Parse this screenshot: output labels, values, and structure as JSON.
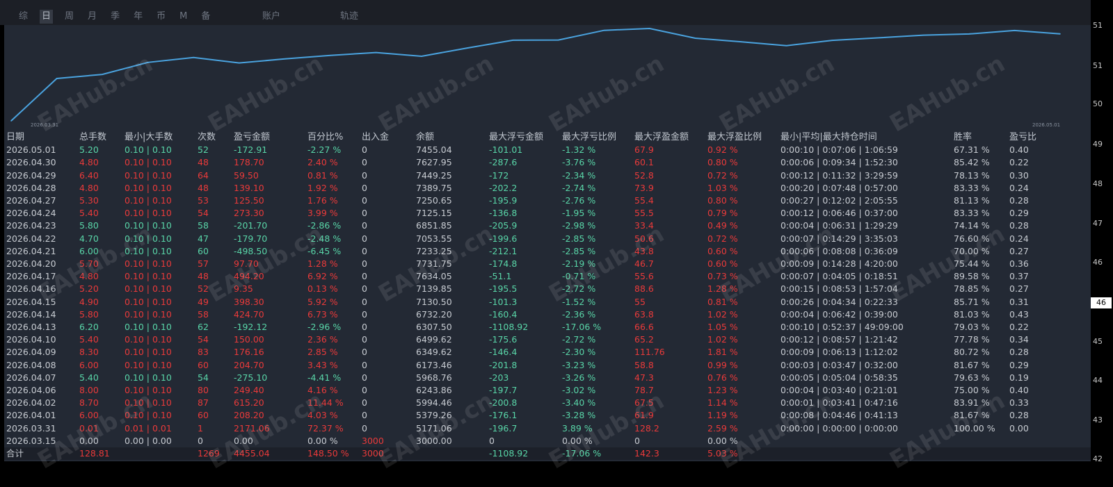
{
  "tabs": [
    "综",
    "日",
    "周",
    "月",
    "季",
    "年",
    "币",
    "M",
    "备"
  ],
  "tab_active": "日",
  "tab_account": "账户",
  "tab_track": "轨迹",
  "chart_data": {
    "type": "line",
    "x_start_label": "2026.03.31",
    "x_end_label": "2026.05.01",
    "values": [
      3000,
      5171.06,
      5379.26,
      5994.46,
      6243.86,
      5968.76,
      6173.46,
      6349.62,
      6499.62,
      6307.5,
      6732.2,
      7130.5,
      7139.85,
      7634.05,
      7731.75,
      7233.25,
      7053.55,
      6851.85,
      7125.15,
      7250.65,
      7389.75,
      7449.25,
      7627.95,
      7455.04
    ],
    "color": "#4aa3df"
  },
  "table": {
    "headers": [
      "日期",
      "总手数",
      "最小|大手数",
      "次数",
      "盈亏金额",
      "百分比%",
      "出入金",
      "余额",
      "最大浮亏金额",
      "最大浮亏比例",
      "最大浮盈金额",
      "最大浮盈比例",
      "最小|平均|最大持仓时间",
      "胜率",
      "盈亏比"
    ],
    "rows": [
      [
        "2026.05.01",
        "5.20",
        "0.10 | 0.10",
        "52",
        "-172.91",
        "-2.27 %",
        "0",
        "7455.04",
        "-101.01",
        "-1.32 %",
        "67.9",
        "0.92 %",
        "0:00:10 | 0:07:06 | 1:06:59",
        "67.31 %",
        "0.40"
      ],
      [
        "2026.04.30",
        "4.80",
        "0.10 | 0.10",
        "48",
        "178.70",
        "2.40 %",
        "0",
        "7627.95",
        "-287.6",
        "-3.76 %",
        "60.1",
        "0.80 %",
        "0:00:06 | 0:09:34 | 1:52:30",
        "85.42 %",
        "0.22"
      ],
      [
        "2026.04.29",
        "6.40",
        "0.10 | 0.10",
        "64",
        "59.50",
        "0.81 %",
        "0",
        "7449.25",
        "-172",
        "-2.34 %",
        "52.8",
        "0.72 %",
        "0:00:12 | 0:11:32 | 3:29:59",
        "78.13 %",
        "0.30"
      ],
      [
        "2026.04.28",
        "4.80",
        "0.10 | 0.10",
        "48",
        "139.10",
        "1.92 %",
        "0",
        "7389.75",
        "-202.2",
        "-2.74 %",
        "73.9",
        "1.03 %",
        "0:00:20 | 0:07:48 | 0:57:00",
        "83.33 %",
        "0.24"
      ],
      [
        "2026.04.27",
        "5.30",
        "0.10 | 0.10",
        "53",
        "125.50",
        "1.76 %",
        "0",
        "7250.65",
        "-195.9",
        "-2.76 %",
        "55.4",
        "0.80 %",
        "0:00:27 | 0:12:02 | 2:05:55",
        "81.13 %",
        "0.28"
      ],
      [
        "2026.04.24",
        "5.40",
        "0.10 | 0.10",
        "54",
        "273.30",
        "3.99 %",
        "0",
        "7125.15",
        "-136.8",
        "-1.95 %",
        "55.5",
        "0.79 %",
        "0:00:12 | 0:06:46 | 0:37:00",
        "83.33 %",
        "0.29"
      ],
      [
        "2026.04.23",
        "5.80",
        "0.10 | 0.10",
        "58",
        "-201.70",
        "-2.86 %",
        "0",
        "6851.85",
        "-205.9",
        "-2.98 %",
        "33.4",
        "0.49 %",
        "0:00:04 | 0:06:31 | 1:29:29",
        "74.14 %",
        "0.28"
      ],
      [
        "2026.04.22",
        "4.70",
        "0.10 | 0.10",
        "47",
        "-179.70",
        "-2.48 %",
        "0",
        "7053.55",
        "-199.6",
        "-2.85 %",
        "50.6",
        "0.72 %",
        "0:00:07 | 0:14:29 | 3:35:03",
        "76.60 %",
        "0.24"
      ],
      [
        "2026.04.21",
        "6.00",
        "0.10 | 0.10",
        "60",
        "-498.50",
        "-6.45 %",
        "0",
        "7233.25",
        "-212.1",
        "-2.85 %",
        "43.8",
        "0.60 %",
        "0:00:06 | 0:08:08 | 0:36:09",
        "70.00 %",
        "0.27"
      ],
      [
        "2026.04.20",
        "5.70",
        "0.10 | 0.10",
        "57",
        "97.70",
        "1.28 %",
        "0",
        "7731.75",
        "-174.8",
        "-2.19 %",
        "46.7",
        "0.60 %",
        "0:00:09 | 0:14:28 | 4:20:00",
        "75.44 %",
        "0.36"
      ],
      [
        "2026.04.17",
        "4.80",
        "0.10 | 0.10",
        "48",
        "494.20",
        "6.92 %",
        "0",
        "7634.05",
        "-51.1",
        "-0.71 %",
        "55.6",
        "0.73 %",
        "0:00:07 | 0:04:05 | 0:18:51",
        "89.58 %",
        "0.37"
      ],
      [
        "2026.04.16",
        "5.20",
        "0.10 | 0.10",
        "52",
        "9.35",
        "0.13 %",
        "0",
        "7139.85",
        "-195.5",
        "-2.72 %",
        "88.6",
        "1.28 %",
        "0:00:15 | 0:08:53 | 1:57:04",
        "78.85 %",
        "0.27"
      ],
      [
        "2026.04.15",
        "4.90",
        "0.10 | 0.10",
        "49",
        "398.30",
        "5.92 %",
        "0",
        "7130.50",
        "-101.3",
        "-1.52 %",
        "55",
        "0.81 %",
        "0:00:26 | 0:04:34 | 0:22:33",
        "85.71 %",
        "0.31"
      ],
      [
        "2026.04.14",
        "5.80",
        "0.10 | 0.10",
        "58",
        "424.70",
        "6.73 %",
        "0",
        "6732.20",
        "-160.4",
        "-2.36 %",
        "63.8",
        "1.02 %",
        "0:00:04 | 0:06:42 | 0:39:00",
        "81.03 %",
        "0.43"
      ],
      [
        "2026.04.13",
        "6.20",
        "0.10 | 0.10",
        "62",
        "-192.12",
        "-2.96 %",
        "0",
        "6307.50",
        "-1108.92",
        "-17.06 %",
        "66.6",
        "1.05 %",
        "0:00:10 | 0:52:37 | 49:09:00",
        "79.03 %",
        "0.22"
      ],
      [
        "2026.04.10",
        "5.40",
        "0.10 | 0.10",
        "54",
        "150.00",
        "2.36 %",
        "0",
        "6499.62",
        "-175.6",
        "-2.72 %",
        "65.2",
        "1.02 %",
        "0:00:12 | 0:08:57 | 1:21:42",
        "77.78 %",
        "0.34"
      ],
      [
        "2026.04.09",
        "8.30",
        "0.10 | 0.10",
        "83",
        "176.16",
        "2.85 %",
        "0",
        "6349.62",
        "-146.4",
        "-2.30 %",
        "111.76",
        "1.81 %",
        "0:00:09 | 0:06:13 | 1:12:02",
        "80.72 %",
        "0.28"
      ],
      [
        "2026.04.08",
        "6.00",
        "0.10 | 0.10",
        "60",
        "204.70",
        "3.43 %",
        "0",
        "6173.46",
        "-201.8",
        "-3.23 %",
        "58.8",
        "0.99 %",
        "0:00:03 | 0:03:47 | 0:32:00",
        "81.67 %",
        "0.29"
      ],
      [
        "2026.04.07",
        "5.40",
        "0.10 | 0.10",
        "54",
        "-275.10",
        "-4.41 %",
        "0",
        "5968.76",
        "-203",
        "-3.26 %",
        "47.3",
        "0.76 %",
        "0:00:05 | 0:05:04 | 0:58:35",
        "79.63 %",
        "0.19"
      ],
      [
        "2026.04.06",
        "8.00",
        "0.10 | 0.10",
        "80",
        "249.40",
        "4.16 %",
        "0",
        "6243.86",
        "-197.7",
        "-3.02 %",
        "78.7",
        "1.23 %",
        "0:00:04 | 0:03:40 | 0:21:01",
        "75.00 %",
        "0.40"
      ],
      [
        "2026.04.02",
        "8.70",
        "0.10 | 0.10",
        "87",
        "615.20",
        "11.44 %",
        "0",
        "5994.46",
        "-200.8",
        "-3.40 %",
        "67.5",
        "1.14 %",
        "0:00:01 | 0:03:41 | 0:47:16",
        "83.91 %",
        "0.33"
      ],
      [
        "2026.04.01",
        "6.00",
        "0.10 | 0.10",
        "60",
        "208.20",
        "4.03 %",
        "0",
        "5379.26",
        "-176.1",
        "-3.28 %",
        "61.9",
        "1.19 %",
        "0:00:08 | 0:04:46 | 0:41:13",
        "81.67 %",
        "0.28"
      ],
      [
        "2026.03.31",
        "0.01",
        "0.01 | 0.01",
        "1",
        "2171.06",
        "72.37 %",
        "0",
        "5171.06",
        "-196.7",
        "3.89 %",
        "128.2",
        "2.59 %",
        "0:00:00 | 0:00:00 | 0:00:00",
        "100.00 %",
        "0.00"
      ],
      [
        "2026.03.15",
        "0.00",
        "0.00 | 0.00",
        "0",
        "0.00",
        "0.00 %",
        "3000",
        "3000.00",
        "0",
        "0.00 %",
        "0",
        "0.00 %",
        "",
        "",
        ""
      ]
    ],
    "total": [
      "合计",
      "128.81",
      "",
      "1269",
      "4455.04",
      "148.50 %",
      "3000",
      "",
      "-1108.92",
      "-17.06 %",
      "142.3",
      "5.03 %",
      "",
      "",
      ""
    ]
  },
  "axis_ticks": [
    "51",
    "51",
    "50",
    "49",
    "48",
    "47",
    "46",
    "46",
    "45",
    "44",
    "43",
    "42"
  ],
  "watermark": "EAHub.cn",
  "colors": {
    "positive": "#ea3a3a",
    "negative": "#59d6a8",
    "neutral": "#c8ccd2",
    "panel": "#232934"
  }
}
